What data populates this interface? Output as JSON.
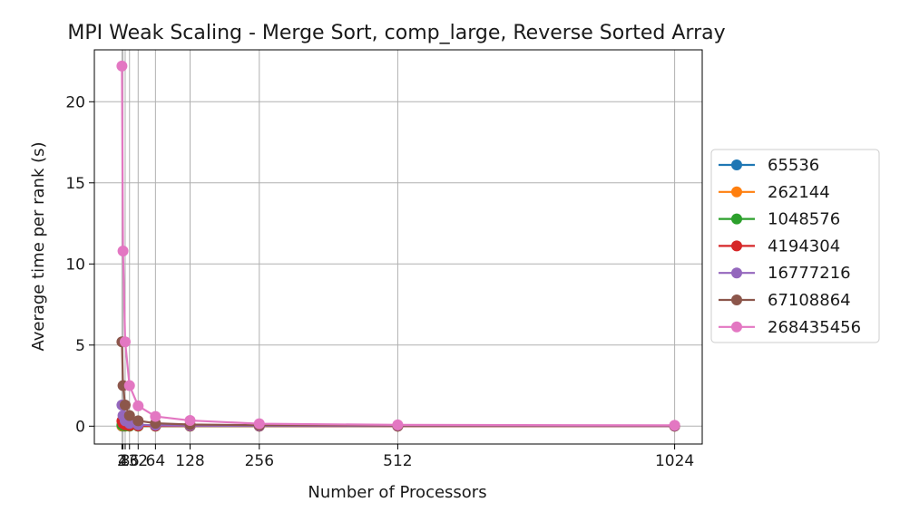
{
  "chart_data": {
    "type": "line",
    "title": "MPI Weak Scaling - Merge Sort, comp_large, Reverse Sorted Array",
    "xlabel": "Number of Processors",
    "ylabel": "Average time per rank (s)",
    "x": [
      2,
      4,
      8,
      16,
      32,
      64,
      128,
      256,
      512,
      1024
    ],
    "xticks": [
      2,
      4,
      8,
      16,
      32,
      64,
      128,
      256,
      512,
      1024
    ],
    "xlim": [
      -49,
      1075
    ],
    "ylim": [
      -1.1,
      23.2
    ],
    "yticks": [
      0,
      5,
      10,
      15,
      20
    ],
    "grid": true,
    "legend_position": "right-outside",
    "series": [
      {
        "name": "65536",
        "color": "#1f77b4",
        "values": [
          0.004,
          0.002,
          0.001,
          0.0006,
          0.0003,
          0.0002,
          0.0001,
          0.0001,
          0.0001,
          0.0001
        ]
      },
      {
        "name": "262144",
        "color": "#ff7f0e",
        "values": [
          0.018,
          0.009,
          0.005,
          0.003,
          0.002,
          0.001,
          0.0008,
          0.0006,
          0.0005,
          0.0005
        ]
      },
      {
        "name": "1048576",
        "color": "#2ca02c",
        "values": [
          0.08,
          0.04,
          0.02,
          0.01,
          0.006,
          0.004,
          0.003,
          0.002,
          0.002,
          0.002
        ]
      },
      {
        "name": "4194304",
        "color": "#d62728",
        "values": [
          0.32,
          0.16,
          0.08,
          0.04,
          0.02,
          0.012,
          0.008,
          0.006,
          0.005,
          0.005
        ]
      },
      {
        "name": "16777216",
        "color": "#9467bd",
        "values": [
          1.3,
          0.65,
          0.33,
          0.17,
          0.09,
          0.05,
          0.03,
          0.02,
          0.015,
          0.012
        ]
      },
      {
        "name": "67108864",
        "color": "#8c564b",
        "values": [
          5.2,
          2.5,
          1.3,
          0.65,
          0.33,
          0.18,
          0.1,
          0.06,
          0.04,
          0.03
        ]
      },
      {
        "name": "268435456",
        "color": "#e377c2",
        "values": [
          22.2,
          10.8,
          5.2,
          2.5,
          1.25,
          0.6,
          0.35,
          0.15,
          0.08,
          0.05
        ]
      }
    ]
  }
}
